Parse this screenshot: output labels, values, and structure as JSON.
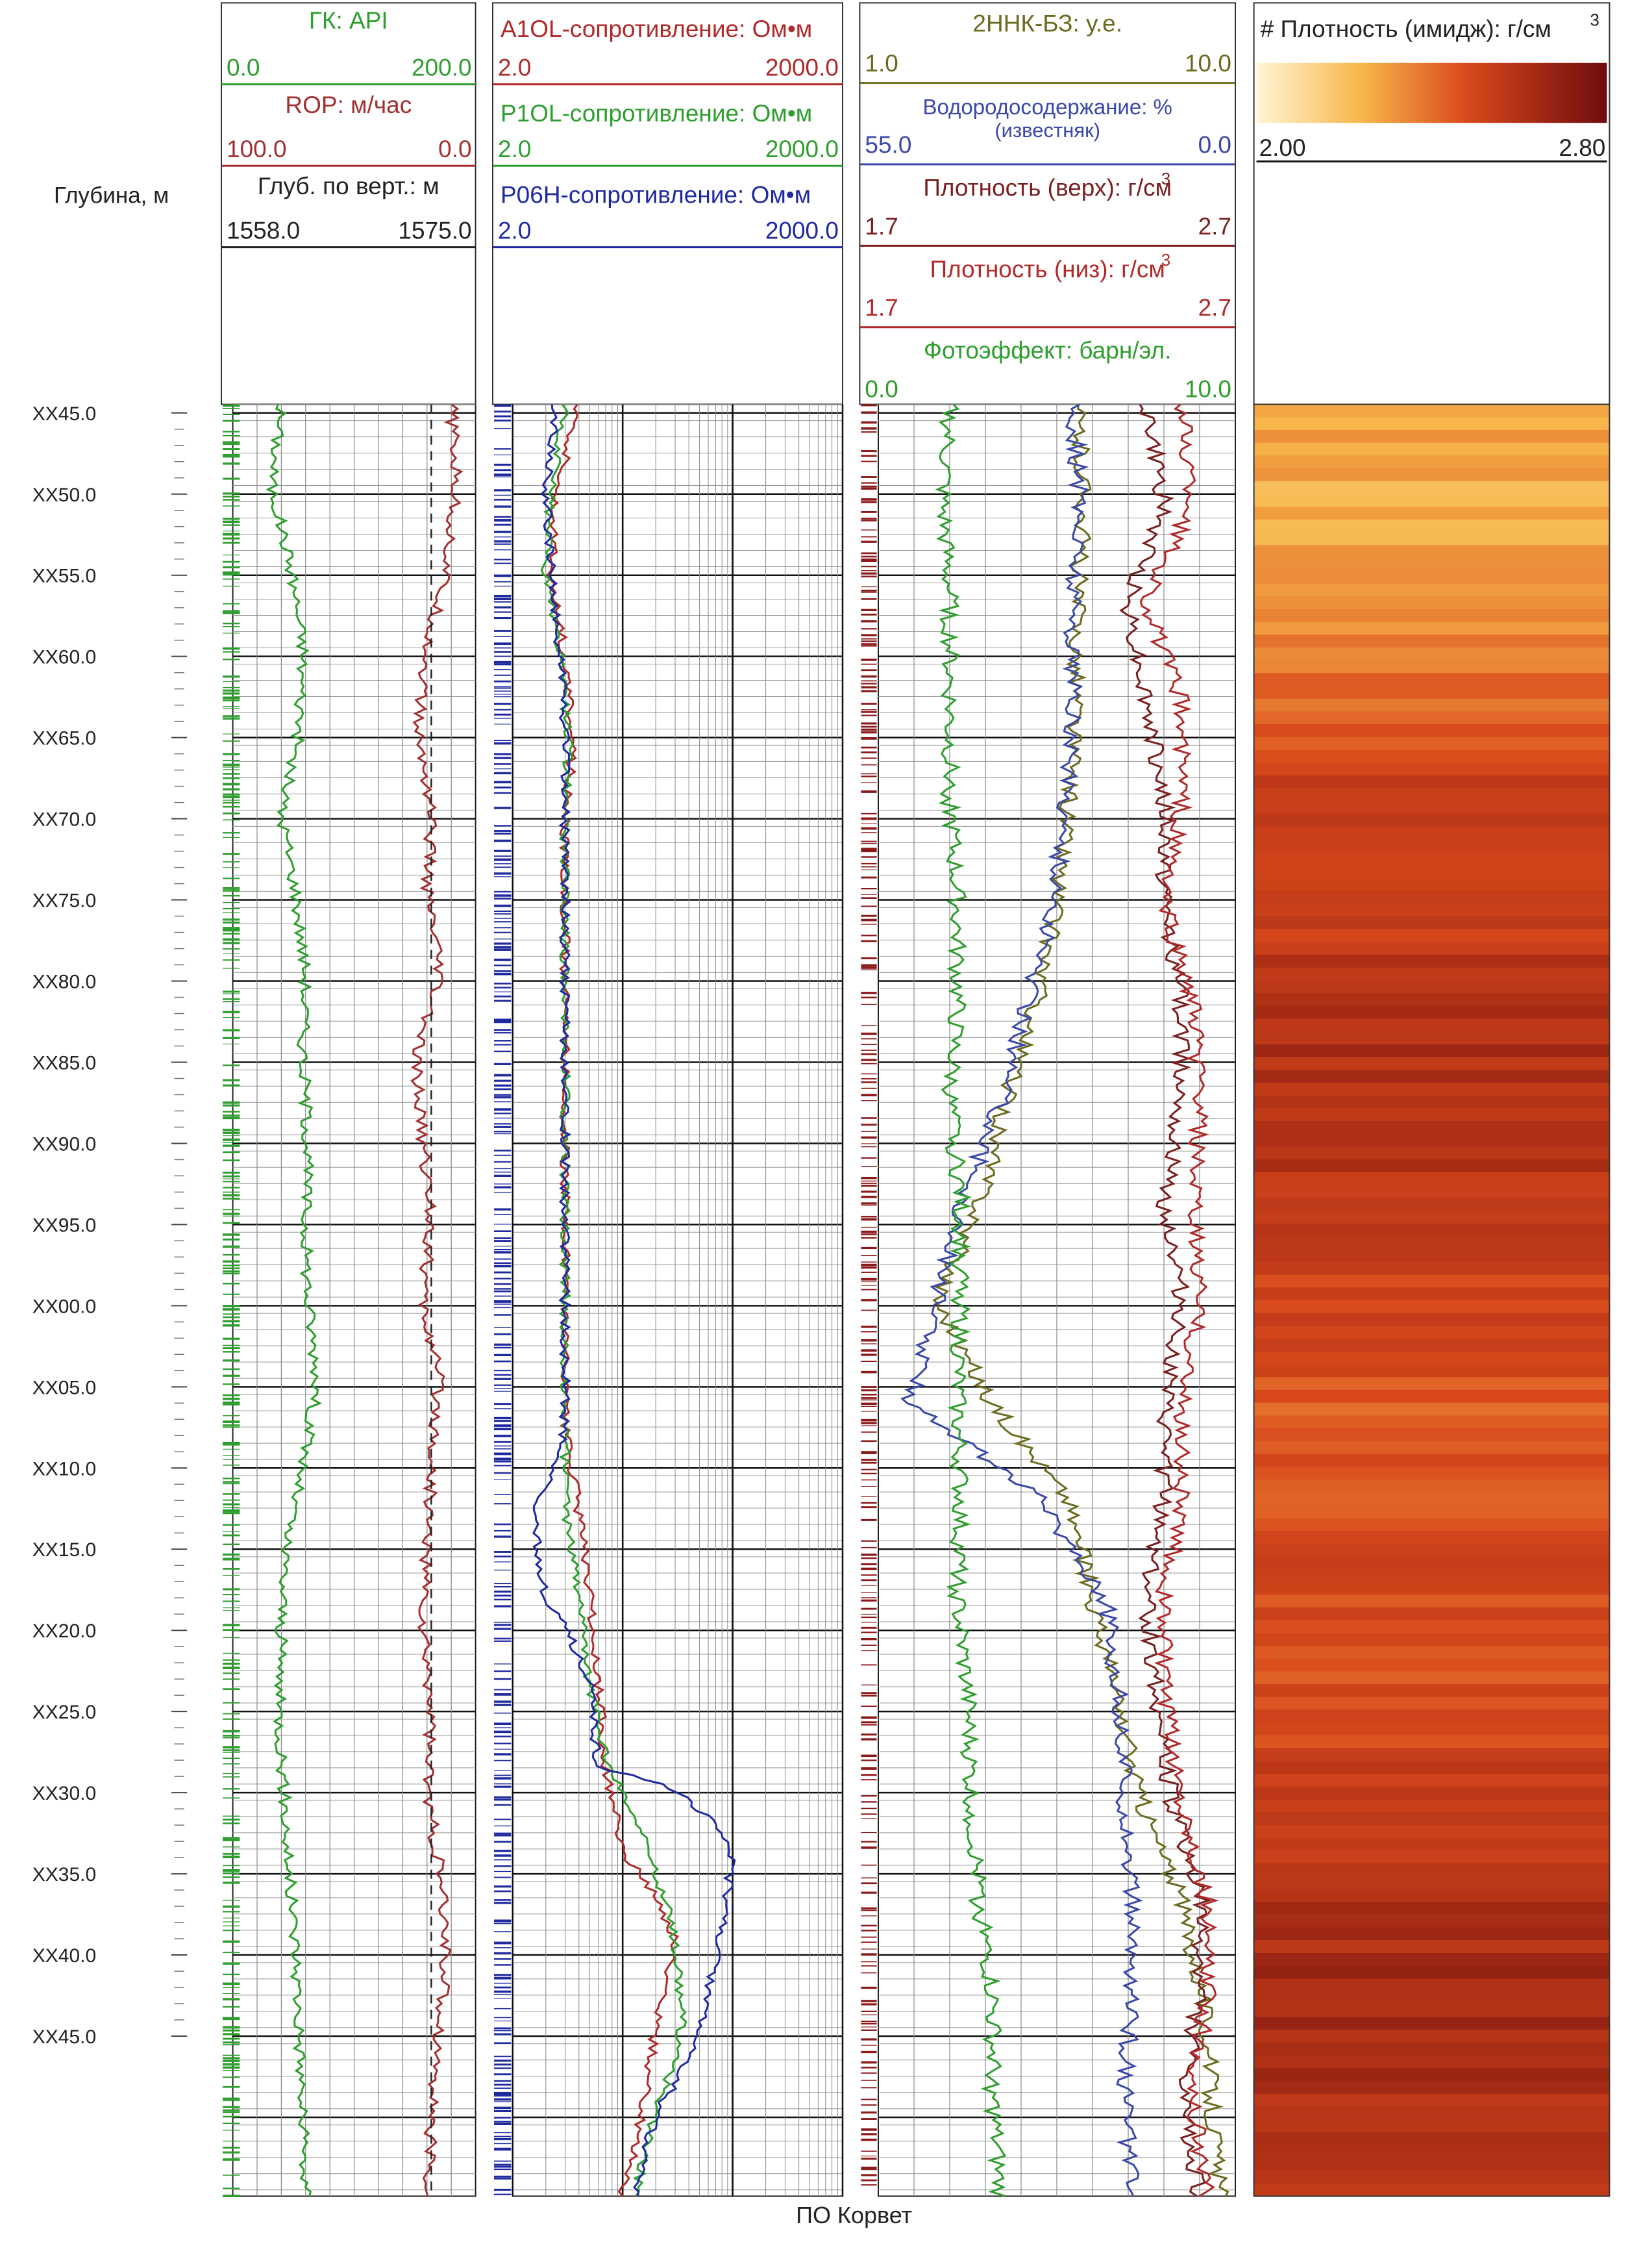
{
  "title": "",
  "footer": "ПО Корвет",
  "depth_track": {
    "title": "Глубина, м",
    "labels": [
      "XX45.0",
      "XX50.0",
      "XX55.0",
      "XX60.0",
      "XX65.0",
      "XX70.0",
      "XX75.0",
      "XX80.0",
      "XX85.0",
      "XX90.0",
      "XX95.0",
      "XX00.0",
      "XX05.0",
      "XX10.0",
      "XX15.0",
      "XX20.0",
      "XX25.0",
      "XX30.0",
      "XX35.0",
      "XX40.0",
      "XX45.0"
    ]
  },
  "track1": {
    "curves": [
      {
        "name": "ГК: API",
        "min": "0.0",
        "max": "200.0",
        "color": "#2e9e2e"
      },
      {
        "name": "ROP: м/час",
        "min": "100.0",
        "max": "0.0",
        "color": "#a33030"
      },
      {
        "name": "Глуб. по верт.: м",
        "min": "1558.0",
        "max": "1575.0",
        "color": "#222222"
      }
    ]
  },
  "track2": {
    "curves": [
      {
        "name": "A1OL-сопротивление: Ом•м",
        "min": "2.0",
        "max": "2000.0",
        "color": "#b02a2a"
      },
      {
        "name": "P1OL-сопротивление: Ом•м",
        "min": "2.0",
        "max": "2000.0",
        "color": "#2e9e2e"
      },
      {
        "name": "P06H-сопротивление: Ом•м",
        "min": "2.0",
        "max": "2000.0",
        "color": "#1f2aa0"
      }
    ]
  },
  "track3": {
    "curves": [
      {
        "name": "2ННК-БЗ: у.е.",
        "min": "1.0",
        "max": "10.0",
        "color": "#6b6b1f"
      },
      {
        "name": "Водородосодержание: %",
        "sub": "(известняк)",
        "min": "55.0",
        "max": "0.0",
        "color": "#3a48a8"
      },
      {
        "name": "Плотность (верх): г/см",
        "sup": "3",
        "min": "1.7",
        "max": "2.7",
        "color": "#7a1f1f"
      },
      {
        "name": "Плотность (низ): г/см",
        "sup": "3",
        "min": "1.7",
        "max": "2.7",
        "color": "#b02a2a"
      },
      {
        "name": "Фотоэффект: барн/эл.",
        "min": "0.0",
        "max": "10.0",
        "color": "#2e9e2e"
      }
    ]
  },
  "track4": {
    "title": "# Плотность (имидж): г/см",
    "sup": "3",
    "min": "2.00",
    "max": "2.80"
  },
  "colors": {
    "green": "#2e9e2e",
    "red": "#b02a2a",
    "blue": "#1f2aa0",
    "olive": "#6b6b1f",
    "grid": "#000000",
    "gridMinor": "#8c8c8c"
  },
  "chart_data": {
    "type": "line",
    "depth_axis": {
      "label": "Глубина, м",
      "major_step_m": 5.0,
      "range": [
        "XX45.0",
        "XX50.0 (next cycle)"
      ]
    },
    "tracks": [
      {
        "name": "Track 1",
        "series": [
          {
            "name": "ГК: API",
            "scale": [
              0,
              200
            ],
            "values": [
              40,
              32,
              48,
              58,
              55,
              40,
              52,
              60,
              58,
              62,
              60,
              62,
              70,
              58,
              43,
              40,
              38,
              42,
              46,
              52,
              55,
              57,
              60
            ]
          },
          {
            "name": "ROP: м/час",
            "scale": [
              100,
              0
            ],
            "values": [
              10,
              8,
              12,
              20,
              24,
              18,
              20,
              15,
              25,
              22,
              18,
              22,
              15,
              18,
              20,
              22,
              18,
              20,
              15,
              12,
              15,
              18,
              20
            ]
          }
        ]
      },
      {
        "name": "Track 2 (log)",
        "series": [
          {
            "name": "A1OL-сопротивление: Ом•м",
            "scale": [
              2,
              2000
            ],
            "log": true,
            "values": [
              8,
              5,
              4.5,
              6,
              7,
              6,
              6,
              6,
              6,
              6,
              6,
              6,
              6,
              8,
              10,
              12,
              14,
              20,
              60,
              40,
              30,
              20
            ]
          },
          {
            "name": "P1OL-сопротивление: Ом•м",
            "scale": [
              2,
              2000
            ],
            "log": true,
            "values": [
              6,
              4.5,
              4,
              5.5,
              6.5,
              6,
              6,
              6,
              6,
              6,
              6,
              6,
              6,
              6,
              8,
              10,
              15,
              35,
              60,
              70,
              40,
              25
            ]
          },
          {
            "name": "P06H-сопротивление: Ом•м",
            "scale": [
              2,
              2000
            ],
            "log": true,
            "values": [
              5,
              4,
              4.5,
              5.5,
              6,
              6,
              6,
              6,
              6,
              6,
              6,
              6,
              6,
              3,
              4,
              10,
              12,
              200,
              150,
              100,
              40,
              25
            ]
          }
        ]
      },
      {
        "name": "Track 3",
        "series": [
          {
            "name": "2ННК-БЗ: у.е.",
            "scale": [
              1,
              10
            ],
            "values": [
              6,
              6.2,
              6,
              6,
              5.8,
              5.5,
              5,
              4.2,
              3.6,
              2.5,
              3.8,
              5.8,
              6.4,
              7,
              7.6,
              8.6,
              9.2,
              9.4,
              9.6
            ]
          },
          {
            "name": "Водородосодержание: %",
            "scale": [
              55,
              0
            ],
            "values": [
              25,
              24,
              25,
              25,
              26,
              28,
              32,
              36,
              42,
              46,
              50,
              30,
              20,
              18,
              17,
              16,
              16,
              17,
              16
            ]
          },
          {
            "name": "Плотность (верх): г/см3",
            "scale": [
              1.7,
              2.7
            ],
            "values": [
              2.45,
              2.5,
              2.4,
              2.45,
              2.5,
              2.5,
              2.55,
              2.55,
              2.5,
              2.55,
              2.5,
              2.5,
              2.45,
              2.48,
              2.52,
              2.6,
              2.6,
              2.55,
              2.6
            ]
          },
          {
            "name": "Плотность (низ): г/см3",
            "scale": [
              1.7,
              2.7
            ],
            "values": [
              2.55,
              2.58,
              2.45,
              2.55,
              2.55,
              2.5,
              2.58,
              2.6,
              2.58,
              2.6,
              2.55,
              2.55,
              2.5,
              2.5,
              2.55,
              2.62,
              2.62,
              2.58,
              2.62
            ]
          },
          {
            "name": "Фотоэффект: барн/эл.",
            "scale": [
              0,
              10
            ],
            "values": [
              2,
              1.8,
              2,
              2,
              2,
              2.2,
              2.2,
              2,
              2.3,
              2.3,
              2.2,
              2.3,
              2.2,
              2.5,
              2.6,
              2.8,
              3.2,
              3.2,
              3.4
            ]
          }
        ]
      },
      {
        "name": "Track 4",
        "series": [
          {
            "name": "# Плотность (имидж): г/см3",
            "scale": [
              2.0,
              2.8
            ],
            "type": "heatmap",
            "values": [
              2.3,
              2.25,
              2.3,
              2.4,
              2.5,
              2.55,
              2.55,
              2.6,
              2.6,
              2.55,
              2.5,
              2.45,
              2.45,
              2.5,
              2.45,
              2.5,
              2.55,
              2.6,
              2.65,
              2.6,
              2.6
            ]
          }
        ]
      }
    ]
  }
}
